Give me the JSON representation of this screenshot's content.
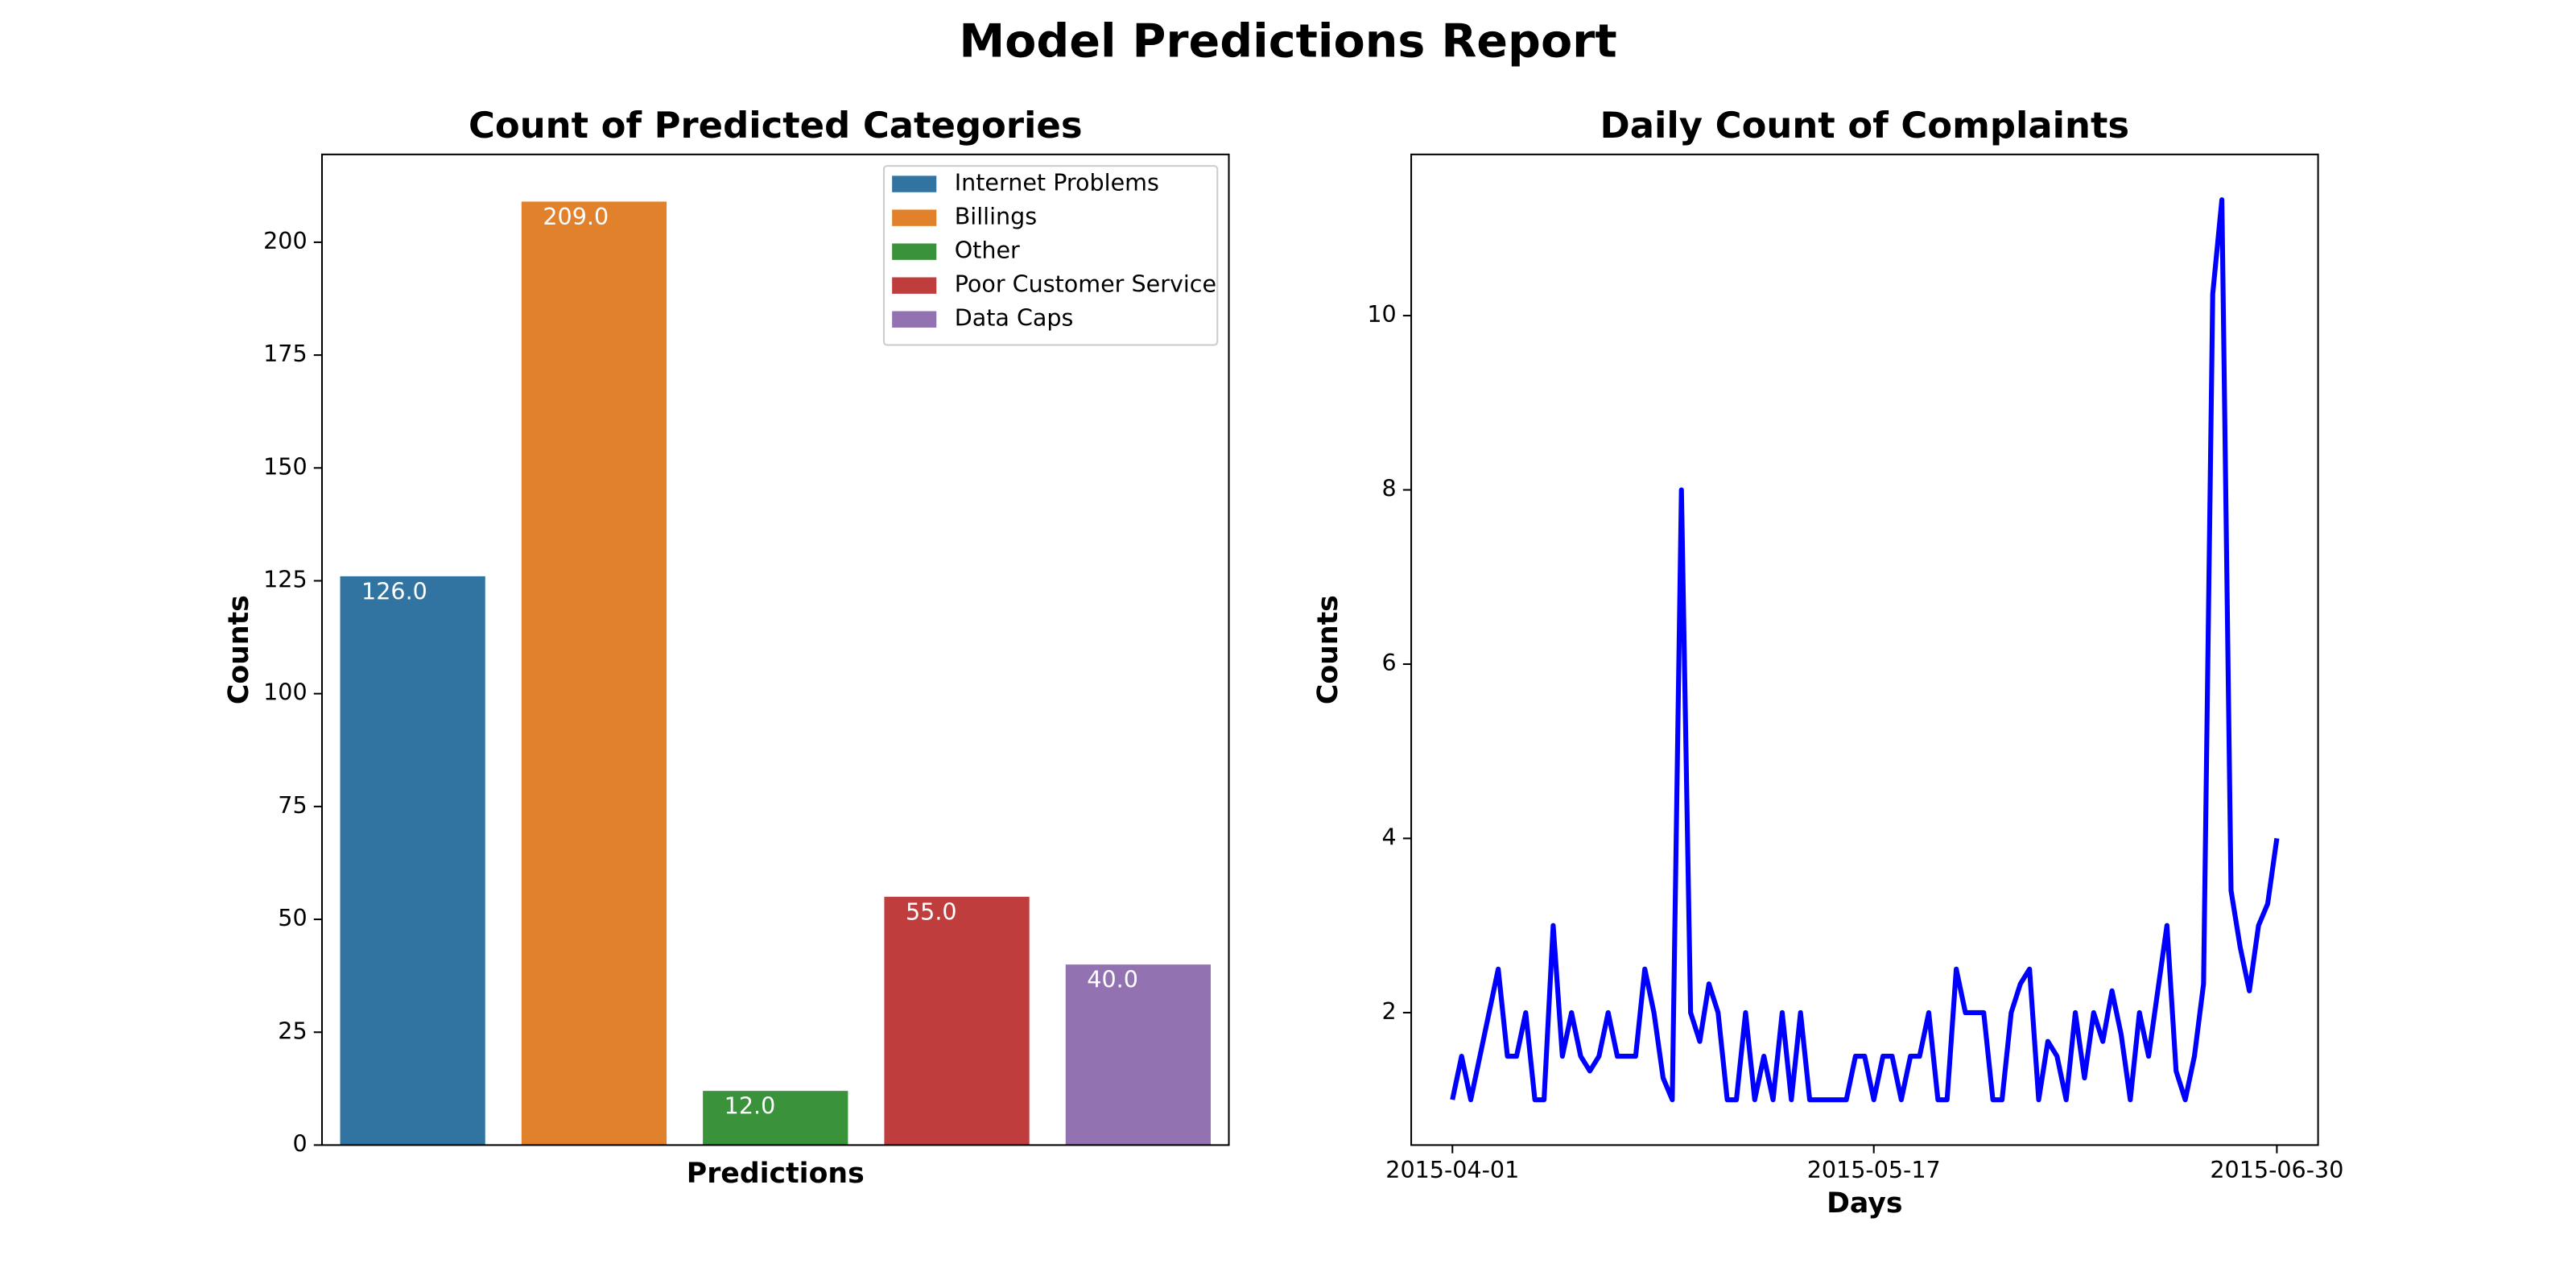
{
  "title": "Model Predictions Report",
  "chart_data": [
    {
      "type": "bar",
      "title": "Count of Predicted Categories",
      "xlabel": "Predictions",
      "ylabel": "Counts",
      "categories": [
        "Internet Problems",
        "Billings",
        "Other",
        "Poor Customer Service",
        "Data Caps"
      ],
      "values": [
        126,
        209,
        12,
        55,
        40
      ],
      "value_labels": [
        "126.0",
        "209.0",
        "12.0",
        "55.0",
        "40.0"
      ],
      "colors": [
        "#3274a1",
        "#e1812c",
        "#3a923a",
        "#c03d3e",
        "#9372b2"
      ],
      "ylim": [
        0,
        219.45
      ],
      "yticks": [
        0,
        25,
        50,
        75,
        100,
        125,
        150,
        175,
        200
      ],
      "legend": "upper right",
      "grid": false
    },
    {
      "type": "line",
      "title": "Daily Count of Complaints",
      "xlabel": "Days",
      "ylabel": "Counts",
      "x": [
        "2015-04-01",
        "2015-04-02",
        "2015-04-03",
        "2015-04-04",
        "2015-04-05",
        "2015-04-06",
        "2015-04-07",
        "2015-04-08",
        "2015-04-09",
        "2015-04-10",
        "2015-04-11",
        "2015-04-12",
        "2015-04-13",
        "2015-04-14",
        "2015-04-15",
        "2015-04-16",
        "2015-04-17",
        "2015-04-18",
        "2015-04-19",
        "2015-04-20",
        "2015-04-21",
        "2015-04-22",
        "2015-04-23",
        "2015-04-24",
        "2015-04-25",
        "2015-04-26",
        "2015-04-27",
        "2015-04-28",
        "2015-04-29",
        "2015-04-30",
        "2015-05-01",
        "2015-05-02",
        "2015-05-03",
        "2015-05-04",
        "2015-05-05",
        "2015-05-06",
        "2015-05-07",
        "2015-05-08",
        "2015-05-09",
        "2015-05-10",
        "2015-05-11",
        "2015-05-12",
        "2015-05-13",
        "2015-05-14",
        "2015-05-15",
        "2015-05-16",
        "2015-05-17",
        "2015-05-18",
        "2015-05-19",
        "2015-05-20",
        "2015-05-21",
        "2015-05-22",
        "2015-05-23",
        "2015-05-24",
        "2015-05-25",
        "2015-05-26",
        "2015-05-27",
        "2015-05-28",
        "2015-05-29",
        "2015-05-30",
        "2015-05-31",
        "2015-06-01",
        "2015-06-02",
        "2015-06-03",
        "2015-06-04",
        "2015-06-05",
        "2015-06-06",
        "2015-06-07",
        "2015-06-08",
        "2015-06-09",
        "2015-06-10",
        "2015-06-11",
        "2015-06-12",
        "2015-06-13",
        "2015-06-14",
        "2015-06-15",
        "2015-06-16",
        "2015-06-17",
        "2015-06-18",
        "2015-06-19",
        "2015-06-20",
        "2015-06-21",
        "2015-06-22",
        "2015-06-23",
        "2015-06-24",
        "2015-06-25",
        "2015-06-26",
        "2015-06-27",
        "2015-06-28",
        "2015-06-29",
        "2015-06-30"
      ],
      "values": [
        1,
        1.5,
        1,
        1.5,
        2,
        2.5,
        1.5,
        1.5,
        2,
        1,
        1,
        3,
        1.5,
        2,
        1.5,
        1.33,
        1.5,
        2,
        1.5,
        1.5,
        1.5,
        2.5,
        2,
        1.25,
        1,
        8,
        2,
        1.67,
        2.33,
        2,
        1,
        1,
        2,
        1,
        1.5,
        1,
        2,
        1,
        2,
        1,
        1,
        1,
        1,
        1,
        1.5,
        1.5,
        1,
        1.5,
        1.5,
        1,
        1.5,
        1.5,
        2,
        1,
        1,
        2.5,
        2,
        2,
        2,
        1,
        1,
        2,
        2.33,
        2.5,
        1,
        1.67,
        1.5,
        1,
        2,
        1.25,
        2,
        1.67,
        2.25,
        1.75,
        1,
        2,
        1.5,
        2.25,
        3,
        1.33,
        1,
        1.5,
        2.33,
        10.25,
        11.33,
        3.4,
        2.75,
        2.25,
        3,
        3.25,
        4
      ],
      "color": "#0000ff",
      "xlim": [
        "2015-03-27T12:00Z",
        "2015-07-04T12:00Z"
      ],
      "xticks": [
        "2015-04-01",
        "2015-05-17",
        "2015-06-30"
      ],
      "ylim": [
        0.48,
        11.85
      ],
      "yticks": [
        2,
        4,
        6,
        8,
        10
      ],
      "grid": false
    }
  ]
}
